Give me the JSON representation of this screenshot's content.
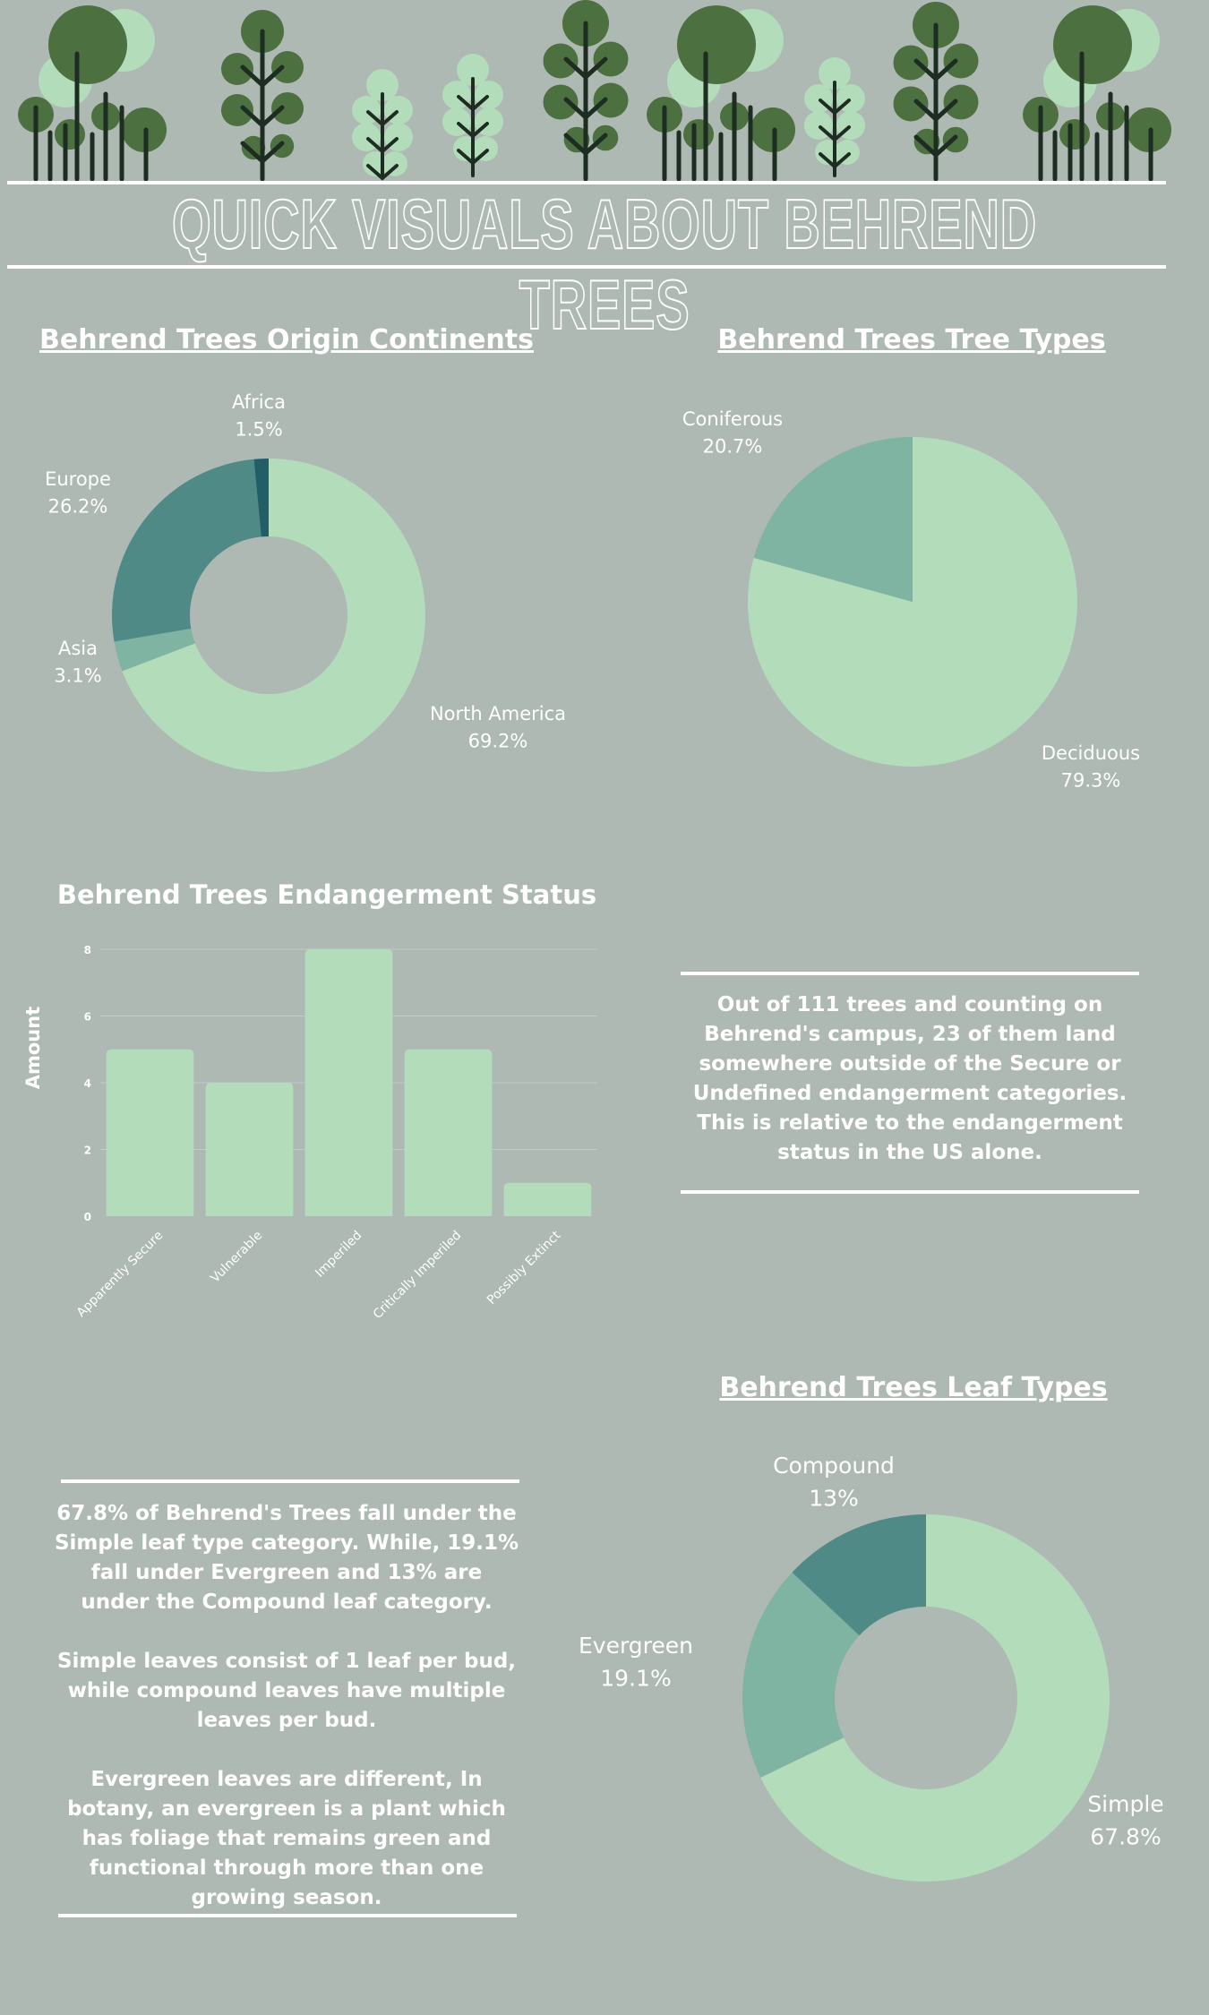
{
  "header": {
    "title": "QUICK VISUALS ABOUT BEHREND TREES"
  },
  "colors": {
    "background": "#adb9b2",
    "light_green": "#b3dcbb",
    "mid_green": "#7fb3a2",
    "teal": "#4f8a86",
    "dark_teal": "#215e68",
    "tree_dark": "#4c7040",
    "tree_light": "#b3dcbb",
    "trunk": "#1e2d22"
  },
  "chart_data": [
    {
      "id": "origin",
      "type": "pie",
      "title": "Behrend Trees Origin Continents",
      "donut": true,
      "slices": [
        {
          "name": "North America",
          "value": 69.2,
          "label": "69.2%",
          "color": "#b3dcbb"
        },
        {
          "name": "Asia",
          "value": 3.1,
          "label": "3.1%",
          "color": "#7fb3a2"
        },
        {
          "name": "Europe",
          "value": 26.2,
          "label": "26.2%",
          "color": "#4f8a86"
        },
        {
          "name": "Africa",
          "value": 1.5,
          "label": "1.5%",
          "color": "#215e68"
        }
      ]
    },
    {
      "id": "types",
      "type": "pie",
      "title": "Behrend Trees Tree Types",
      "donut": false,
      "slices": [
        {
          "name": "Deciduous",
          "value": 79.3,
          "label": "79.3%",
          "color": "#b3dcbb"
        },
        {
          "name": "Coniferous",
          "value": 20.7,
          "label": "20.7%",
          "color": "#7fb3a2"
        }
      ]
    },
    {
      "id": "endangerment",
      "type": "bar",
      "title": "Behrend Trees Endangerment Status",
      "categories": [
        "Apparently Secure",
        "Vulnerable",
        "Imperiled",
        "Critically Imperiled",
        "Possibly Extinct"
      ],
      "values": [
        5,
        4,
        8,
        5,
        1
      ],
      "ylabel": "Amount",
      "ylim": [
        0,
        8
      ],
      "yticks": [
        "0",
        "2",
        "4",
        "6",
        "8"
      ],
      "color": "#b3dcbb"
    },
    {
      "id": "leaf",
      "type": "pie",
      "title": "Behrend Trees Leaf Types",
      "donut": true,
      "slices": [
        {
          "name": "Simple",
          "value": 67.8,
          "label": "67.8%",
          "color": "#b3dcbb"
        },
        {
          "name": "Evergreen",
          "value": 19.1,
          "label": "19.1%",
          "color": "#7fb3a2"
        },
        {
          "name": "Compound",
          "value": 13.0,
          "label": "13%",
          "color": "#4f8a86"
        }
      ]
    }
  ],
  "endangerment_note": "Out of 111 trees and counting on Behrend's campus, 23 of them land somewhere outside of the Secure or Undefined endangerment categories. This is relative to the endangerment status in the US alone.",
  "leaf_notes": [
    "67.8% of Behrend's Trees fall under the Simple leaf type category. While, 19.1% fall under Evergreen and 13% are under the Compound leaf category.",
    "Simple leaves consist of 1 leaf per bud, while compound leaves have multiple leaves per bud.",
    "Evergreen leaves are different, In botany, an evergreen is a plant which has foliage that remains green and functional through more than one growing season."
  ]
}
